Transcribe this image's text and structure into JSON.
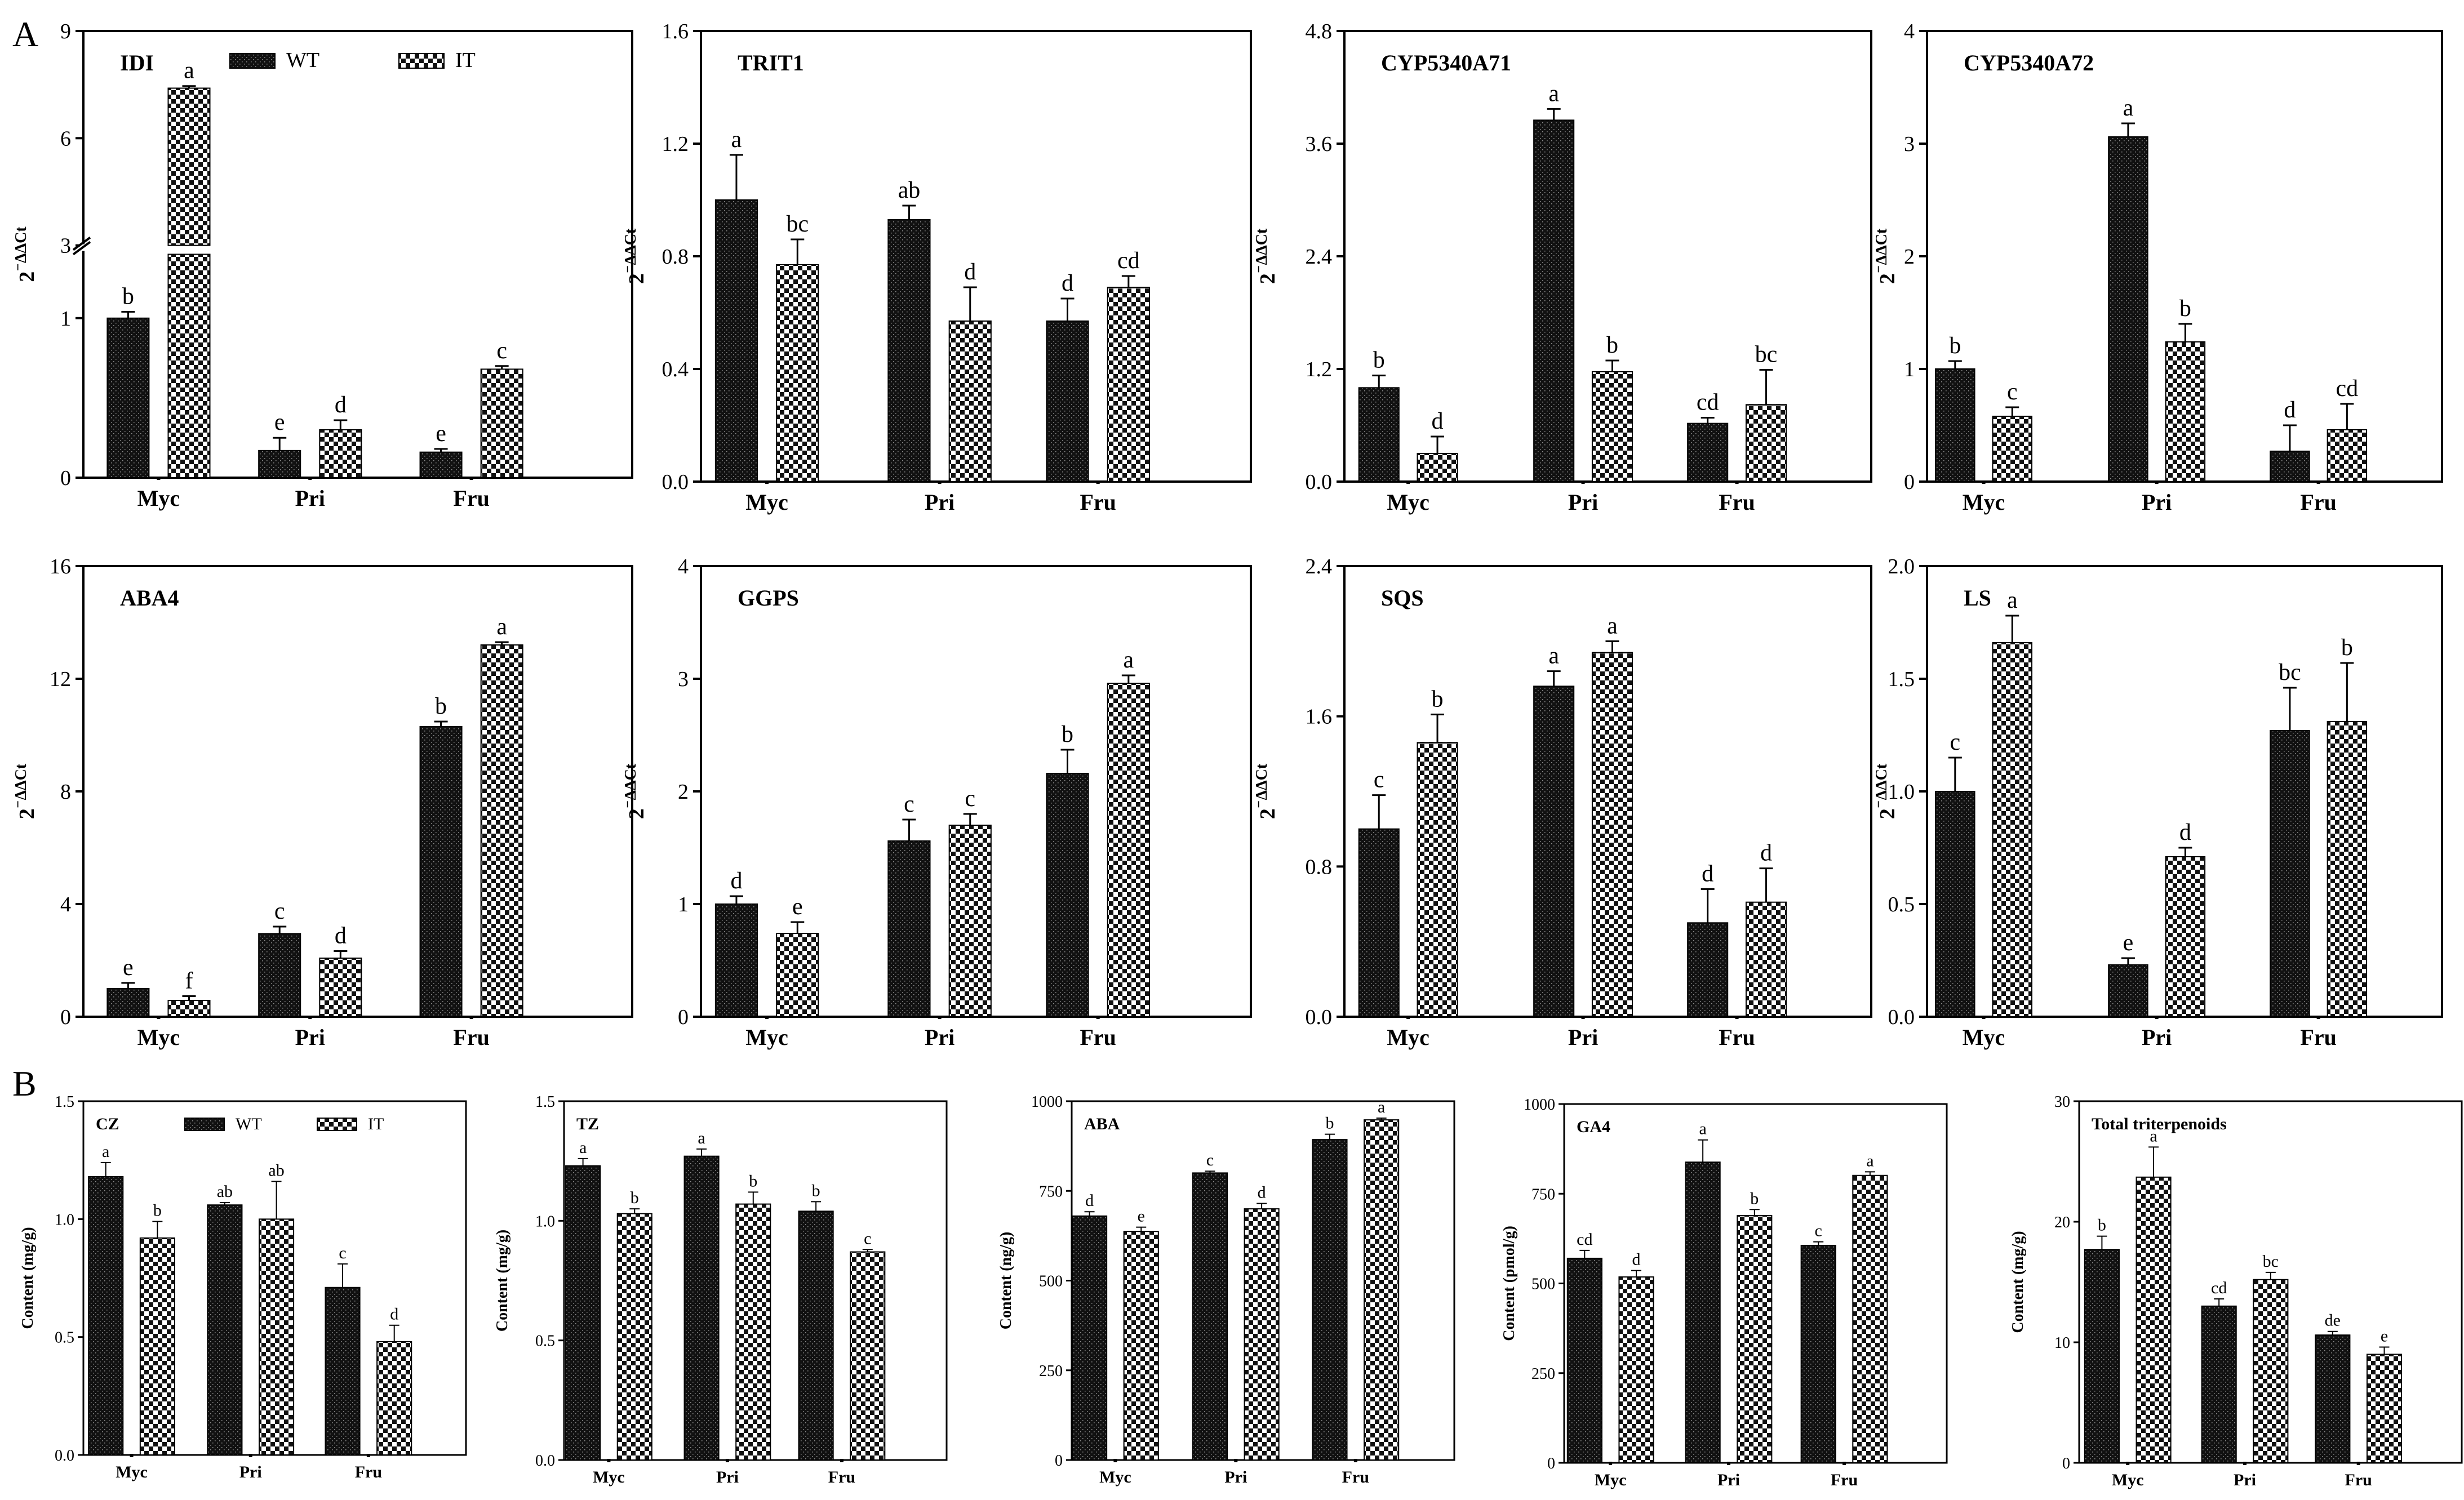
{
  "panel_labels": {
    "A": "A",
    "B": "B"
  },
  "legend": {
    "series": [
      "WT",
      "IT"
    ]
  },
  "colors": {
    "wt_fill": "#111111",
    "it_fill": "#ffffff",
    "axis": "#000000"
  },
  "chart_data": [
    {
      "id": "IDI",
      "type": "bar",
      "title": "IDI",
      "ylabel": "2⁻ΔΔCt",
      "categories": [
        "Myc",
        "Pri",
        "Fru"
      ],
      "series": [
        {
          "name": "WT",
          "values": [
            1.0,
            0.17,
            0.16
          ],
          "errors": [
            0.04,
            0.08,
            0.02
          ],
          "letters": [
            "b",
            "e",
            "e"
          ]
        },
        {
          "name": "IT",
          "values": [
            7.4,
            0.3,
            0.68
          ],
          "errors": [
            0.06,
            0.06,
            0.02
          ],
          "letters": [
            "a",
            "d",
            "c"
          ]
        }
      ],
      "ylim": [
        0,
        9
      ],
      "broken_axis": true,
      "break_low": 1.4,
      "break_high": 3,
      "yticks": [
        0,
        1,
        3,
        6,
        9
      ],
      "tick_labels": [
        "0",
        "1",
        "3",
        "6",
        "9"
      ],
      "legend": true
    },
    {
      "id": "TRIT1",
      "type": "bar",
      "title": "TRIT1",
      "ylabel": "2⁻ΔΔCt",
      "categories": [
        "Myc",
        "Pri",
        "Fru"
      ],
      "series": [
        {
          "name": "WT",
          "values": [
            1.0,
            0.93,
            0.57
          ],
          "errors": [
            0.16,
            0.05,
            0.08
          ],
          "letters": [
            "a",
            "ab",
            "d"
          ]
        },
        {
          "name": "IT",
          "values": [
            0.77,
            0.57,
            0.69
          ],
          "errors": [
            0.09,
            0.12,
            0.04
          ],
          "letters": [
            "bc",
            "d",
            "cd"
          ]
        }
      ],
      "ylim": [
        0,
        1.6
      ],
      "yticks": [
        0,
        0.4,
        0.8,
        1.2,
        1.6
      ],
      "tick_labels": [
        "0.0",
        "0.4",
        "0.8",
        "1.2",
        "1.6"
      ]
    },
    {
      "id": "CYP5340A71",
      "type": "bar",
      "title": "CYP5340A71",
      "ylabel": "2⁻ΔΔCt",
      "categories": [
        "Myc",
        "Pri",
        "Fru"
      ],
      "series": [
        {
          "name": "WT",
          "values": [
            1.0,
            3.85,
            0.62
          ],
          "errors": [
            0.13,
            0.12,
            0.06
          ],
          "letters": [
            "b",
            "a",
            "cd"
          ]
        },
        {
          "name": "IT",
          "values": [
            0.3,
            1.17,
            0.82
          ],
          "errors": [
            0.18,
            0.12,
            0.37
          ],
          "letters": [
            "d",
            "b",
            "bc"
          ]
        }
      ],
      "ylim": [
        0,
        4.8
      ],
      "yticks": [
        0,
        1.2,
        2.4,
        3.6,
        4.8
      ],
      "tick_labels": [
        "0.0",
        "1.2",
        "2.4",
        "3.6",
        "4.8"
      ]
    },
    {
      "id": "CYP5340A72",
      "type": "bar",
      "title": "CYP5340A72",
      "ylabel": "2⁻ΔΔCt",
      "categories": [
        "Myc",
        "Pri",
        "Fru"
      ],
      "series": [
        {
          "name": "WT",
          "values": [
            1.0,
            3.06,
            0.27
          ],
          "errors": [
            0.07,
            0.12,
            0.23
          ],
          "letters": [
            "b",
            "a",
            "d"
          ]
        },
        {
          "name": "IT",
          "values": [
            0.58,
            1.24,
            0.46
          ],
          "errors": [
            0.08,
            0.16,
            0.23
          ],
          "letters": [
            "c",
            "b",
            "cd"
          ]
        }
      ],
      "ylim": [
        0,
        4
      ],
      "yticks": [
        0,
        1,
        2,
        3,
        4
      ],
      "tick_labels": [
        "0",
        "1",
        "2",
        "3",
        "4"
      ]
    },
    {
      "id": "ABA4",
      "type": "bar",
      "title": "ABA4",
      "ylabel": "2⁻ΔΔCt",
      "categories": [
        "Myc",
        "Pri",
        "Fru"
      ],
      "series": [
        {
          "name": "WT",
          "values": [
            1.0,
            2.95,
            10.3
          ],
          "errors": [
            0.2,
            0.25,
            0.18
          ],
          "letters": [
            "e",
            "c",
            "b"
          ]
        },
        {
          "name": "IT",
          "values": [
            0.58,
            2.08,
            13.2
          ],
          "errors": [
            0.15,
            0.25,
            0.1
          ],
          "letters": [
            "f",
            "d",
            "a"
          ]
        }
      ],
      "ylim": [
        0,
        16
      ],
      "yticks": [
        0,
        4,
        8,
        12,
        16
      ],
      "tick_labels": [
        "0",
        "4",
        "8",
        "12",
        "16"
      ]
    },
    {
      "id": "GGPS",
      "type": "bar",
      "title": "GGPS",
      "ylabel": "2⁻ΔΔCt",
      "categories": [
        "Myc",
        "Pri",
        "Fru"
      ],
      "series": [
        {
          "name": "WT",
          "values": [
            1.0,
            1.56,
            2.16
          ],
          "errors": [
            0.07,
            0.19,
            0.21
          ],
          "letters": [
            "d",
            "c",
            "b"
          ]
        },
        {
          "name": "IT",
          "values": [
            0.74,
            1.7,
            2.96
          ],
          "errors": [
            0.1,
            0.1,
            0.07
          ],
          "letters": [
            "e",
            "c",
            "a"
          ]
        }
      ],
      "ylim": [
        0,
        4
      ],
      "yticks": [
        0,
        1,
        2,
        3,
        4
      ],
      "tick_labels": [
        "0",
        "1",
        "2",
        "3",
        "4"
      ]
    },
    {
      "id": "SQS",
      "type": "bar",
      "title": "SQS",
      "ylabel": "2⁻ΔΔCt",
      "categories": [
        "Myc",
        "Pri",
        "Fru"
      ],
      "series": [
        {
          "name": "WT",
          "values": [
            1.0,
            1.76,
            0.5
          ],
          "errors": [
            0.18,
            0.08,
            0.18
          ],
          "letters": [
            "c",
            "a",
            "d"
          ]
        },
        {
          "name": "IT",
          "values": [
            1.46,
            1.94,
            0.61
          ],
          "errors": [
            0.15,
            0.06,
            0.18
          ],
          "letters": [
            "b",
            "a",
            "d"
          ]
        }
      ],
      "ylim": [
        0,
        2.4
      ],
      "yticks": [
        0,
        0.8,
        1.6,
        2.4
      ],
      "tick_labels": [
        "0.0",
        "0.8",
        "1.6",
        "2.4"
      ]
    },
    {
      "id": "LS",
      "type": "bar",
      "title": "LS",
      "ylabel": "2⁻ΔΔCt",
      "categories": [
        "Myc",
        "Pri",
        "Fru"
      ],
      "series": [
        {
          "name": "WT",
          "values": [
            1.0,
            0.23,
            1.27
          ],
          "errors": [
            0.15,
            0.03,
            0.19
          ],
          "letters": [
            "c",
            "e",
            "bc"
          ]
        },
        {
          "name": "IT",
          "values": [
            1.66,
            0.71,
            1.31
          ],
          "errors": [
            0.12,
            0.04,
            0.26
          ],
          "letters": [
            "a",
            "d",
            "b"
          ]
        }
      ],
      "ylim": [
        0,
        2.0
      ],
      "yticks": [
        0,
        0.5,
        1.0,
        1.5,
        2.0
      ],
      "tick_labels": [
        "0.0",
        "0.5",
        "1.0",
        "1.5",
        "2.0"
      ]
    },
    {
      "id": "CZ",
      "type": "bar",
      "title": "CZ",
      "ylabel": "Content (mg/g)",
      "categories": [
        "Myc",
        "Pri",
        "Fru"
      ],
      "series": [
        {
          "name": "WT",
          "values": [
            1.18,
            1.06,
            0.71
          ],
          "errors": [
            0.06,
            0.01,
            0.1
          ],
          "letters": [
            "a",
            "ab",
            "c"
          ]
        },
        {
          "name": "IT",
          "values": [
            0.92,
            1.0,
            0.48
          ],
          "errors": [
            0.07,
            0.16,
            0.07
          ],
          "letters": [
            "b",
            "ab",
            "d"
          ]
        }
      ],
      "ylim": [
        0,
        1.5
      ],
      "yticks": [
        0,
        0.5,
        1.0,
        1.5
      ],
      "tick_labels": [
        "0.0",
        "0.5",
        "1.0",
        "1.5"
      ],
      "legend": true
    },
    {
      "id": "TZ",
      "type": "bar",
      "title": "TZ",
      "ylabel": "Content (mg/g)",
      "categories": [
        "Myc",
        "Pri",
        "Fru"
      ],
      "series": [
        {
          "name": "WT",
          "values": [
            1.23,
            1.27,
            1.04
          ],
          "errors": [
            0.03,
            0.03,
            0.04
          ],
          "letters": [
            "a",
            "a",
            "b"
          ]
        },
        {
          "name": "IT",
          "values": [
            1.03,
            1.07,
            0.87
          ],
          "errors": [
            0.02,
            0.05,
            0.01
          ],
          "letters": [
            "b",
            "b",
            "c"
          ]
        }
      ],
      "ylim": [
        0,
        1.5
      ],
      "yticks": [
        0,
        0.5,
        1.0,
        1.5
      ],
      "tick_labels": [
        "0.0",
        "0.5",
        "1.0",
        "1.5"
      ]
    },
    {
      "id": "ABA",
      "type": "bar",
      "title": "ABA",
      "ylabel": "Content (ng/g)",
      "categories": [
        "Myc",
        "Pri",
        "Fru"
      ],
      "series": [
        {
          "name": "WT",
          "values": [
            680,
            800,
            893
          ],
          "errors": [
            12,
            5,
            15
          ],
          "letters": [
            "d",
            "c",
            "b"
          ]
        },
        {
          "name": "IT",
          "values": [
            637,
            700,
            948
          ],
          "errors": [
            12,
            15,
            5
          ],
          "letters": [
            "e",
            "d",
            "a"
          ]
        }
      ],
      "ylim": [
        0,
        1000
      ],
      "yticks": [
        0,
        250,
        500,
        750,
        1000
      ],
      "tick_labels": [
        "0",
        "250",
        "500",
        "750",
        "1000"
      ]
    },
    {
      "id": "GA4",
      "type": "bar",
      "title": "GA4",
      "ylabel": "Content (pmol/g)",
      "categories": [
        "Myc",
        "Pri",
        "Fru"
      ],
      "series": [
        {
          "name": "WT",
          "values": [
            570,
            838,
            606
          ],
          "errors": [
            22,
            62,
            10
          ],
          "letters": [
            "cd",
            "a",
            "c"
          ]
        },
        {
          "name": "IT",
          "values": [
            518,
            689,
            801
          ],
          "errors": [
            18,
            17,
            10
          ],
          "letters": [
            "d",
            "b",
            "a"
          ]
        }
      ],
      "ylim": [
        0,
        1000
      ],
      "yticks": [
        0,
        250,
        500,
        750,
        1000
      ],
      "tick_labels": [
        "0",
        "250",
        "500",
        "750",
        "1000"
      ]
    },
    {
      "id": "Total triterpenoids",
      "type": "bar",
      "title": "Total triterpenoids",
      "ylabel": "Content (mg/g)",
      "categories": [
        "Myc",
        "Pri",
        "Fru"
      ],
      "series": [
        {
          "name": "WT",
          "values": [
            17.7,
            13.0,
            10.6
          ],
          "errors": [
            1.1,
            0.6,
            0.3
          ],
          "letters": [
            "b",
            "cd",
            "de"
          ]
        },
        {
          "name": "IT",
          "values": [
            23.7,
            15.2,
            9.0
          ],
          "errors": [
            2.5,
            0.6,
            0.6
          ],
          "letters": [
            "a",
            "bc",
            "e"
          ]
        }
      ],
      "ylim": [
        0,
        30
      ],
      "yticks": [
        0,
        10,
        20,
        30
      ],
      "tick_labels": [
        "0",
        "10",
        "20",
        "30"
      ]
    }
  ]
}
